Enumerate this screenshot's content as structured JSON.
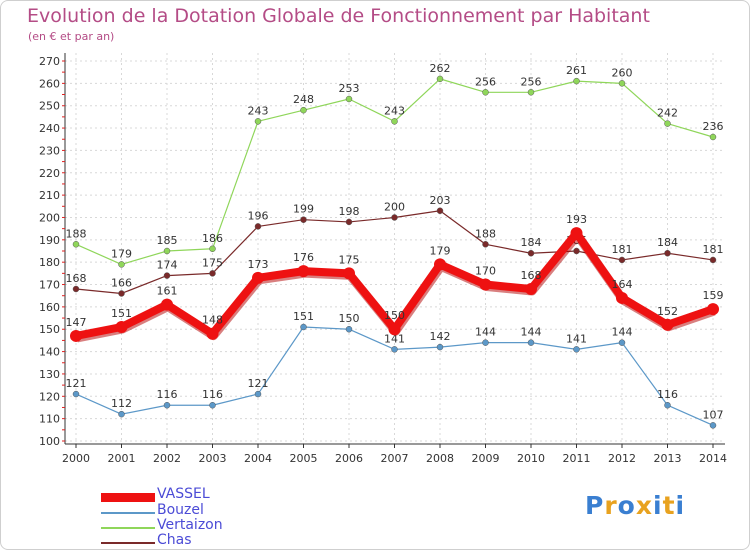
{
  "header": {
    "title": "Evolution de la Dotation Globale de Fonctionnement par Habitant",
    "subtitle": "(en € et par an)"
  },
  "chart_data": {
    "type": "line",
    "title": "Evolution de la Dotation Globale de Fonctionnement par Habitant",
    "subtitle": "(en € et par an)",
    "x": [
      "2000",
      "2001",
      "2002",
      "2003",
      "2004",
      "2005",
      "2006",
      "2007",
      "2008",
      "2009",
      "2010",
      "2011",
      "2012",
      "2013",
      "2014"
    ],
    "ylim": [
      100,
      270
    ],
    "yticks": [
      100,
      110,
      120,
      130,
      140,
      150,
      160,
      170,
      180,
      190,
      200,
      210,
      220,
      230,
      240,
      250,
      260,
      270
    ],
    "grid": true,
    "legend_position": "bottom-left",
    "series": [
      {
        "name": "Vertaizon",
        "color": "#8fd65a",
        "values": [
          188,
          179,
          185,
          186,
          243,
          248,
          253,
          243,
          262,
          256,
          256,
          261,
          260,
          242,
          236
        ]
      },
      {
        "name": "Chas",
        "color": "#7a2a2a",
        "values": [
          168,
          166,
          174,
          175,
          196,
          199,
          198,
          200,
          203,
          188,
          184,
          185,
          181,
          184,
          181
        ]
      },
      {
        "name": "Bouzel",
        "color": "#5c98c8",
        "values": [
          121,
          112,
          116,
          116,
          121,
          151,
          150,
          141,
          142,
          144,
          144,
          141,
          144,
          116,
          107
        ]
      },
      {
        "name": "VASSEL",
        "color": "#ee1111",
        "values": [
          147,
          151,
          161,
          148,
          173,
          176,
          175,
          150,
          179,
          170,
          168,
          193,
          164,
          152,
          159
        ]
      }
    ],
    "legend_order": [
      "VASSEL",
      "Bouzel",
      "Vertaizon",
      "Chas"
    ]
  },
  "legend": {
    "items": [
      {
        "label": "VASSEL",
        "color": "#ee1111"
      },
      {
        "label": "Bouzel",
        "color": "#5c98c8"
      },
      {
        "label": "Vertaizon",
        "color": "#8fd65a"
      },
      {
        "label": "Chas",
        "color": "#7a2a2a"
      }
    ]
  },
  "logo": {
    "text": "Proxiti",
    "letter_colors": [
      "#3a7fd1",
      "#e8a21f",
      "#3a7fd1",
      "#e8a21f",
      "#3a7fd1",
      "#e8a21f",
      "#3a7fd1"
    ]
  }
}
